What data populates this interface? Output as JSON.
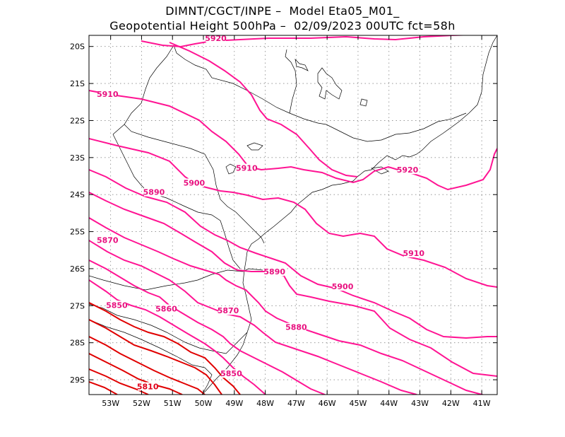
{
  "title": {
    "line1": "DIMNT/CGCT/INPE –  Model Eta05_M01_",
    "line2": "Geopotential Height 500hPa –  02/09/2023 00UTC fct=58h"
  },
  "colors": {
    "contour_magenta": "#ff1493",
    "contour_red": "#e00000",
    "coast": "#000000",
    "grid": "#888888"
  },
  "map": {
    "lon_range": [
      -53.7,
      -40.5
    ],
    "lat_range": [
      -29.4,
      -19.7
    ],
    "lat_labels": [
      "20S",
      "21S",
      "22S",
      "23S",
      "24S",
      "25S",
      "26S",
      "27S",
      "28S",
      "29S"
    ],
    "lon_labels": [
      "53W",
      "52W",
      "51W",
      "50W",
      "49W",
      "48W",
      "47W",
      "46W",
      "45W",
      "44W",
      "43W",
      "42W",
      "41W"
    ],
    "contour_labels": [
      {
        "text": "5920",
        "lon": -49.6,
        "lat": -19.8
      },
      {
        "text": "5910",
        "lon": -53.1,
        "lat": -21.3
      },
      {
        "text": "5910",
        "lon": -48.6,
        "lat": -23.3
      },
      {
        "text": "5920",
        "lon": -43.4,
        "lat": -23.35
      },
      {
        "text": "5900",
        "lon": -50.3,
        "lat": -23.7
      },
      {
        "text": "5890",
        "lon": -51.6,
        "lat": -23.95
      },
      {
        "text": "5870",
        "lon": -53.1,
        "lat": -25.25
      },
      {
        "text": "5910",
        "lon": -43.2,
        "lat": -25.6
      },
      {
        "text": "5890",
        "lon": -47.7,
        "lat": -26.1
      },
      {
        "text": "5900",
        "lon": -45.5,
        "lat": -26.5
      },
      {
        "text": "5850",
        "lon": -52.8,
        "lat": -27.0
      },
      {
        "text": "5860",
        "lon": -51.2,
        "lat": -27.1
      },
      {
        "text": "5870",
        "lon": -49.2,
        "lat": -27.15
      },
      {
        "text": "5880",
        "lon": -47.0,
        "lat": -27.6
      },
      {
        "text": "5850",
        "lon": -49.1,
        "lat": -28.85
      },
      {
        "text": "5810",
        "lon": -51.8,
        "lat": -29.2
      }
    ]
  }
}
